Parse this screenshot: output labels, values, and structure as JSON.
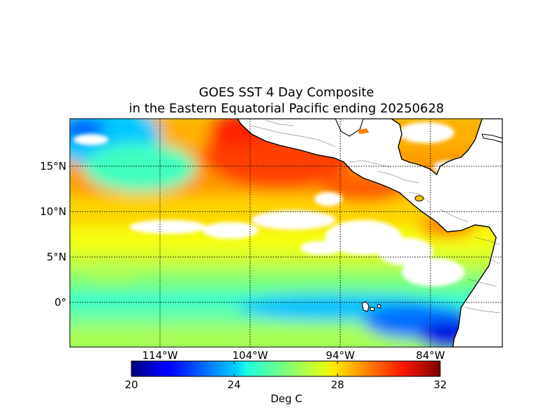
{
  "title_line1": "GOES SST 4 Day Composite",
  "title_line2": "in the Eastern Equatorial Pacific ending 20250628",
  "lat_labels": [
    "15°N",
    "10°N",
    "5°N",
    "0°"
  ],
  "lon_labels": [
    "114°W",
    "104°W",
    "94°W",
    "84°W"
  ],
  "colorbar": {
    "ticks": [
      "20",
      "24",
      "28",
      "32"
    ],
    "label": "Deg C",
    "range": [
      20,
      32
    ],
    "colormap": "jet"
  },
  "map_extent": {
    "lon": [
      -124,
      -76
    ],
    "lat": [
      -5,
      20
    ]
  },
  "gridlines": "dotted",
  "colors": {
    "land": "#ffffff",
    "coastline": "#000000",
    "cloud_mask": "#ffffff"
  }
}
